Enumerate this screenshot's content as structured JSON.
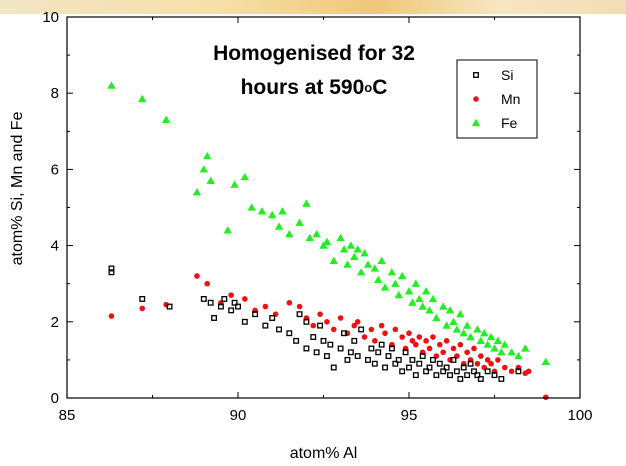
{
  "chart_data": {
    "type": "scatter",
    "title_line1": "Homogenised for 32",
    "title_line2_pre": "hours at 590",
    "title_line2_sup": "o",
    "title_line2_post": "C",
    "xlabel": "atom% Al",
    "ylabel": "atom% Si, Mn and Fe",
    "xlim": [
      85,
      100
    ],
    "ylim": [
      0,
      10
    ],
    "xticks": [
      85,
      90,
      95,
      100
    ],
    "yticks": [
      0,
      2,
      4,
      6,
      8,
      10
    ],
    "grid": false,
    "legend_position": "top-right",
    "colors": {
      "Si": "#000000",
      "Mn": "#ee1111",
      "Fe": "#22ee22"
    },
    "series": [
      {
        "name": "Si",
        "marker": "square",
        "x": [
          86.3,
          86.3,
          87.2,
          88.0,
          89.0,
          89.2,
          89.3,
          89.5,
          89.6,
          89.8,
          89.9,
          90.0,
          90.2,
          90.5,
          90.8,
          91.0,
          91.2,
          91.5,
          91.7,
          91.8,
          92.0,
          92.0,
          92.2,
          92.3,
          92.4,
          92.5,
          92.6,
          92.7,
          92.8,
          93.0,
          93.1,
          93.2,
          93.3,
          93.4,
          93.5,
          93.6,
          93.8,
          93.9,
          94.0,
          94.1,
          94.2,
          94.3,
          94.4,
          94.5,
          94.6,
          94.7,
          94.8,
          94.9,
          95.0,
          95.1,
          95.2,
          95.3,
          95.4,
          95.5,
          95.6,
          95.7,
          95.8,
          95.9,
          96.0,
          96.1,
          96.2,
          96.3,
          96.4,
          96.5,
          96.6,
          96.7,
          96.8,
          96.9,
          97.0,
          97.1,
          97.3,
          97.5,
          97.7,
          98.2
        ],
        "y": [
          3.4,
          3.3,
          2.6,
          2.4,
          2.6,
          2.5,
          2.1,
          2.4,
          2.6,
          2.3,
          2.5,
          2.4,
          2.0,
          2.2,
          1.9,
          2.1,
          1.8,
          1.7,
          1.5,
          2.2,
          2.0,
          1.3,
          1.6,
          1.2,
          1.9,
          1.5,
          1.1,
          1.4,
          0.8,
          1.3,
          1.7,
          1.0,
          1.2,
          1.5,
          1.1,
          1.8,
          1.0,
          1.3,
          0.9,
          1.2,
          1.4,
          0.8,
          1.1,
          1.3,
          0.9,
          1.0,
          0.7,
          1.2,
          0.8,
          1.0,
          0.6,
          0.9,
          1.1,
          0.7,
          0.8,
          1.0,
          0.6,
          0.9,
          0.7,
          0.8,
          0.6,
          1.0,
          0.7,
          0.5,
          0.8,
          0.6,
          0.9,
          0.7,
          0.6,
          0.5,
          0.7,
          0.6,
          0.5,
          0.7
        ]
      },
      {
        "name": "Mn",
        "marker": "circle",
        "x": [
          86.3,
          87.2,
          87.9,
          88.8,
          89.1,
          89.5,
          89.8,
          90.2,
          90.5,
          90.8,
          91.1,
          91.5,
          91.8,
          92.0,
          92.2,
          92.4,
          92.6,
          92.8,
          93.0,
          93.2,
          93.4,
          93.5,
          93.7,
          93.9,
          94.0,
          94.2,
          94.3,
          94.5,
          94.6,
          94.8,
          94.9,
          95.0,
          95.1,
          95.2,
          95.3,
          95.4,
          95.5,
          95.6,
          95.7,
          95.8,
          95.9,
          96.0,
          96.1,
          96.2,
          96.3,
          96.4,
          96.5,
          96.6,
          96.7,
          96.8,
          96.9,
          97.0,
          97.1,
          97.2,
          97.3,
          97.4,
          97.5,
          97.6,
          97.8,
          98.0,
          98.2,
          98.4,
          98.5,
          99.0
        ],
        "y": [
          2.15,
          2.35,
          2.45,
          3.2,
          3.0,
          2.5,
          2.7,
          2.6,
          2.3,
          2.4,
          2.2,
          2.5,
          2.4,
          2.1,
          1.9,
          2.2,
          2.0,
          1.8,
          2.1,
          1.7,
          1.9,
          2.0,
          1.6,
          1.8,
          1.5,
          1.9,
          1.7,
          1.4,
          1.8,
          1.6,
          1.3,
          1.7,
          1.5,
          1.4,
          1.6,
          1.2,
          1.5,
          1.3,
          1.6,
          1.1,
          1.4,
          1.2,
          1.5,
          1.0,
          1.3,
          1.1,
          1.4,
          0.9,
          1.2,
          1.0,
          1.3,
          0.9,
          1.1,
          0.8,
          1.0,
          0.9,
          0.7,
          1.0,
          0.8,
          0.7,
          0.8,
          0.65,
          0.7,
          0.02
        ]
      },
      {
        "name": "Fe",
        "marker": "triangle",
        "x": [
          86.3,
          87.2,
          87.9,
          88.8,
          89.0,
          89.1,
          89.2,
          89.7,
          89.9,
          90.2,
          90.4,
          90.7,
          91.0,
          91.2,
          91.3,
          91.5,
          91.8,
          92.0,
          92.1,
          92.3,
          92.5,
          92.6,
          92.8,
          93.0,
          93.1,
          93.2,
          93.3,
          93.4,
          93.5,
          93.6,
          93.7,
          93.8,
          94.0,
          94.1,
          94.2,
          94.3,
          94.5,
          94.6,
          94.7,
          94.8,
          95.0,
          95.1,
          95.2,
          95.3,
          95.4,
          95.5,
          95.6,
          95.7,
          95.8,
          96.0,
          96.1,
          96.2,
          96.3,
          96.4,
          96.5,
          96.6,
          96.7,
          96.8,
          97.0,
          97.1,
          97.2,
          97.3,
          97.4,
          97.5,
          97.6,
          97.7,
          97.8,
          98.0,
          98.2,
          98.4,
          99.0
        ],
        "y": [
          8.2,
          7.85,
          7.3,
          5.4,
          6.0,
          6.35,
          5.7,
          4.4,
          5.6,
          5.8,
          5.0,
          4.9,
          4.8,
          4.5,
          4.9,
          4.3,
          4.6,
          5.1,
          4.2,
          4.3,
          4.0,
          4.1,
          3.6,
          4.2,
          3.9,
          3.5,
          4.0,
          3.7,
          3.9,
          3.3,
          3.8,
          3.5,
          3.4,
          3.1,
          3.6,
          2.9,
          3.3,
          3.0,
          2.7,
          3.2,
          2.8,
          2.5,
          3.0,
          2.6,
          2.4,
          2.8,
          2.3,
          2.6,
          2.1,
          2.4,
          1.9,
          2.3,
          2.0,
          1.8,
          2.2,
          1.7,
          1.9,
          1.6,
          1.8,
          1.5,
          1.7,
          1.4,
          1.6,
          1.3,
          1.5,
          1.2,
          1.4,
          1.2,
          1.1,
          1.3,
          0.95
        ]
      }
    ]
  }
}
